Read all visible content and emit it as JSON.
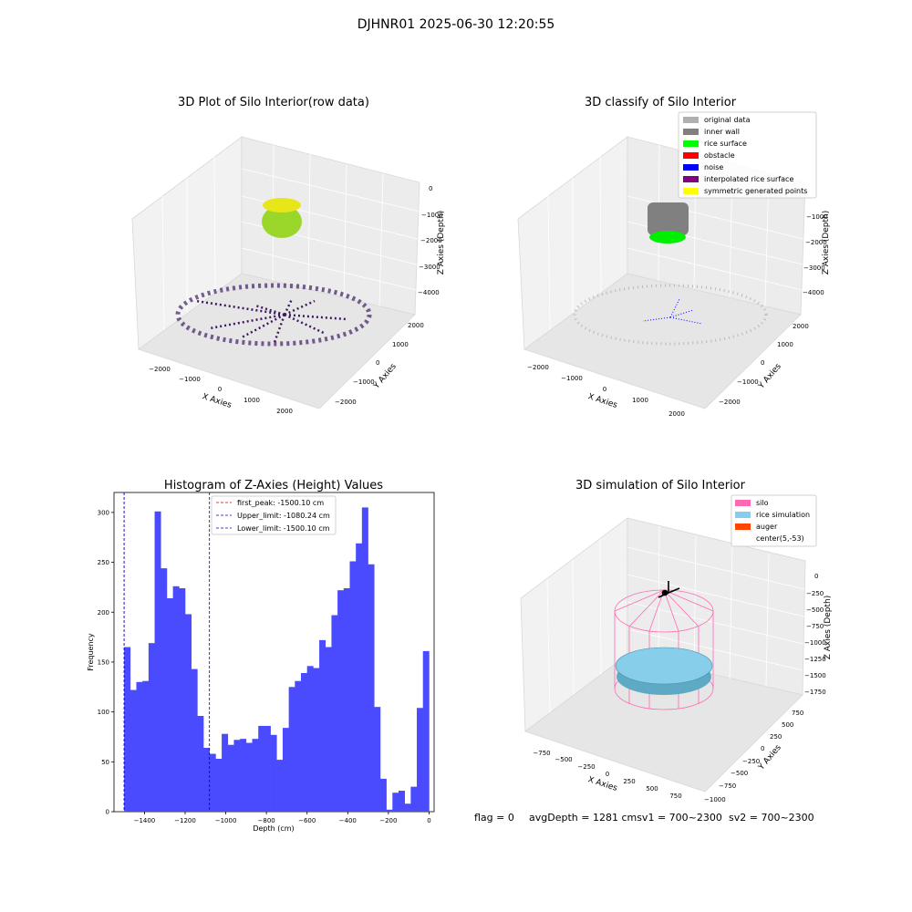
{
  "figure_title": "DJHNR01 2025-06-30 12:20:55",
  "footer": {
    "flag": "flag = 0",
    "avg": "avgDepth = 1281 cmsv1 = 700~2300",
    "sv2": "sv2 = 700~2300"
  },
  "colors": {
    "hist_bar": "#4a4aff",
    "first_peak": "#e00000",
    "limit": "#0000c8",
    "silo": "#ff69b4",
    "rice": "#87ceeb",
    "auger": "#ff4500"
  },
  "chart_data": [
    {
      "type": "scatter",
      "title": "3D Plot of Silo Interior(row data)",
      "xlabel": "X Axies",
      "ylabel": "Y Axies",
      "zlabel": "Z Axies (Depth)",
      "x_ticks": [
        "−2000",
        "−1000",
        "0",
        "1000",
        "2000"
      ],
      "y_ticks": [
        "2000",
        "1000",
        "0",
        "−1000",
        "−2000"
      ],
      "z_ticks": [
        "0",
        "−1000",
        "−2000",
        "−3000",
        "−4000"
      ],
      "xlim": [
        -2500,
        2500
      ],
      "ylim": [
        -2500,
        2500
      ],
      "zlim": [
        -4500,
        0
      ]
    },
    {
      "type": "scatter",
      "title": "3D classify of Silo Interior",
      "xlabel": "X Axies",
      "ylabel": "Y Axies",
      "zlabel": "Z Axies (Depth)",
      "x_ticks": [
        "−2000",
        "−1000",
        "0",
        "1000",
        "2000"
      ],
      "y_ticks": [
        "2000",
        "1000",
        "0",
        "−1000",
        "−2000"
      ],
      "z_ticks": [
        "−1000",
        "−2000",
        "−3000",
        "−4000"
      ],
      "legend": [
        {
          "label": "original data",
          "color": "#b0b0b0"
        },
        {
          "label": "inner wall",
          "color": "#808080"
        },
        {
          "label": "rice surface",
          "color": "#00ff00"
        },
        {
          "label": "obstacle",
          "color": "#ff0000"
        },
        {
          "label": "noise",
          "color": "#0000ff"
        },
        {
          "label": "interpolated rice surface",
          "color": "#800080"
        },
        {
          "label": "symmetric generated points",
          "color": "#ffff00"
        }
      ]
    },
    {
      "type": "bar",
      "title": "Histogram of Z-Axies (Height) Values",
      "xlabel": "Depth (cm)",
      "ylabel": "Frequency",
      "xlim": [
        -1550,
        25
      ],
      "ylim": [
        0,
        320
      ],
      "x_ticks": [
        -1400,
        -1200,
        -1000,
        -800,
        -600,
        -400,
        -200,
        0
      ],
      "x_tick_labels": [
        "−1400",
        "−1200",
        "−1000",
        "−800",
        "−600",
        "−400",
        "−200",
        "0"
      ],
      "y_ticks": [
        0,
        50,
        100,
        150,
        200,
        250,
        300
      ],
      "bin_start": -1500.1,
      "bin_width": 30.0,
      "values": [
        165,
        122,
        130,
        131,
        169,
        301,
        244,
        214,
        226,
        224,
        198,
        143,
        96,
        64,
        58,
        53,
        78,
        67,
        72,
        73,
        69,
        73,
        86,
        86,
        77,
        52,
        84,
        125,
        131,
        139,
        146,
        144,
        172,
        165,
        197,
        222,
        224,
        251,
        269,
        305,
        248,
        105,
        33,
        2,
        19,
        21,
        8,
        25,
        104,
        161
      ],
      "lines": [
        {
          "label": "first_peak: -1500.10 cm",
          "x": -1500.1,
          "color": "#e00000"
        },
        {
          "label": "Upper_limit: -1080.24 cm",
          "x": -1080.24,
          "color": "#0000c8"
        },
        {
          "label": "Lower_limit: -1500.10 cm",
          "x": -1500.1,
          "color": "#0000c8"
        }
      ]
    },
    {
      "type": "scatter",
      "title": "3D simulation of Silo Interior",
      "xlabel": "X Axies",
      "ylabel": "Y Axies",
      "zlabel": "Z Axies (Depth)",
      "x_ticks": [
        "−750",
        "−500",
        "−250",
        "0",
        "250",
        "500",
        "750"
      ],
      "y_ticks": [
        "750",
        "500",
        "250",
        "0",
        "−250",
        "−500",
        "−750",
        "−1000"
      ],
      "z_ticks": [
        "0",
        "−250",
        "−500",
        "−750",
        "−1000",
        "−1250",
        "−1500",
        "−1750"
      ],
      "legend": [
        {
          "label": "silo",
          "color": "#ff69b4"
        },
        {
          "label": "rice simulation",
          "color": "#87ceeb"
        },
        {
          "label": "auger",
          "color": "#ff4500"
        },
        {
          "label": "center(5,-53)",
          "color": ""
        }
      ]
    }
  ]
}
